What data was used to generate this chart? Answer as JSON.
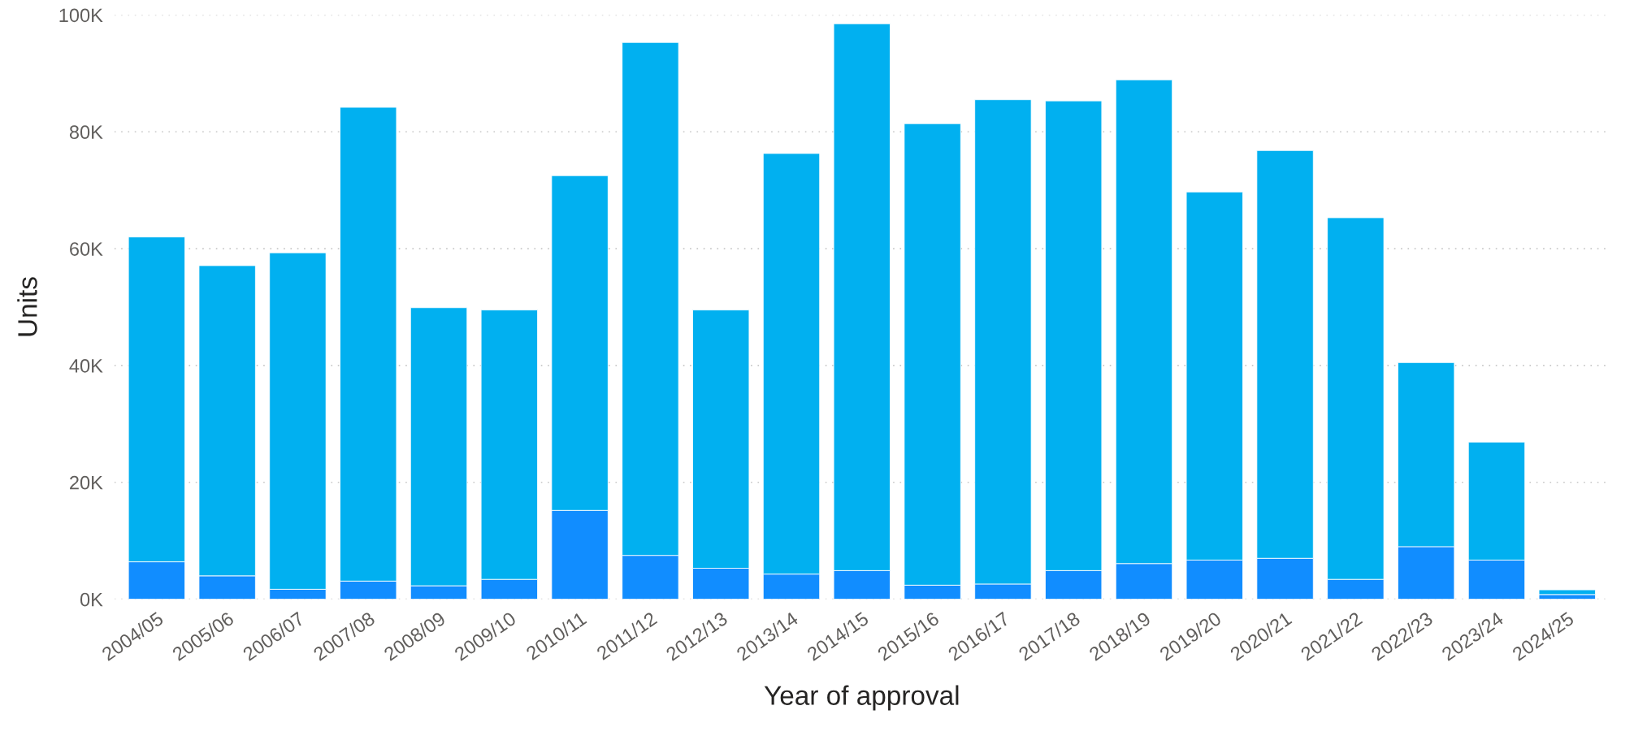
{
  "chart_data": {
    "type": "bar",
    "stacked": true,
    "xlabel": "Year of approval",
    "ylabel": "Units",
    "categories": [
      "2004/05",
      "2005/06",
      "2006/07",
      "2007/08",
      "2008/09",
      "2009/10",
      "2010/11",
      "2011/12",
      "2012/13",
      "2013/14",
      "2014/15",
      "2015/16",
      "2016/17",
      "2017/18",
      "2018/19",
      "2019/20",
      "2020/21",
      "2021/22",
      "2022/23",
      "2023/24",
      "2024/25"
    ],
    "series": [
      {
        "color": "#118dff",
        "values": [
          6400,
          4000,
          1700,
          3100,
          2300,
          3400,
          15200,
          7500,
          5300,
          4300,
          4900,
          2400,
          2600,
          4900,
          6100,
          6700,
          7000,
          3400,
          9000,
          6700,
          800
        ]
      },
      {
        "color": "#01b0f0",
        "values": [
          55600,
          53100,
          57600,
          81100,
          47600,
          46100,
          57300,
          87800,
          44200,
          72000,
          93600,
          79000,
          82900,
          80400,
          82800,
          63000,
          69800,
          61900,
          31500,
          20200,
          800
        ]
      }
    ],
    "ylim": [
      0,
      100000
    ],
    "yticks": [
      {
        "value": 0,
        "label": "0K"
      },
      {
        "value": 20000,
        "label": "20K"
      },
      {
        "value": 40000,
        "label": "40K"
      },
      {
        "value": 60000,
        "label": "60K"
      },
      {
        "value": 80000,
        "label": "80K"
      },
      {
        "value": 100000,
        "label": "100K"
      }
    ],
    "grid": "y"
  }
}
